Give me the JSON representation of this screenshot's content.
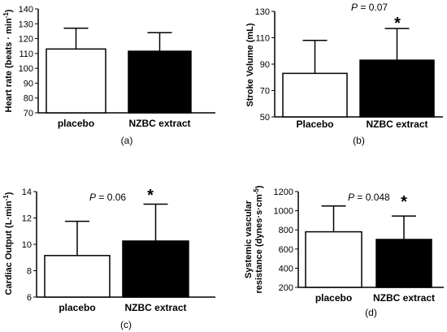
{
  "chart_data": [
    {
      "type": "bar",
      "panel_label": "(a)",
      "ylabel_main": "Heart rate (beats · min",
      "ylabel_sup": "-1",
      "ylabel_tail": ")",
      "categories": [
        "placebo",
        "NZBC extract"
      ],
      "values": [
        113,
        111.5
      ],
      "errors": [
        14,
        12.5
      ],
      "fills": [
        "#ffffff",
        "#000000"
      ],
      "ylim": [
        70,
        140
      ],
      "yticks": [
        70,
        80,
        90,
        100,
        110,
        120,
        130,
        140
      ],
      "p_text": "",
      "p_value": "",
      "significance": ""
    },
    {
      "type": "bar",
      "panel_label": "(b)",
      "ylabel_main": "Stroke Volume (mL)",
      "ylabel_sup": "",
      "ylabel_tail": "",
      "categories": [
        "Placebo",
        "NZBC extract"
      ],
      "values": [
        83,
        93
      ],
      "errors": [
        25,
        24
      ],
      "fills": [
        "#ffffff",
        "#000000"
      ],
      "ylim": [
        50,
        130
      ],
      "yticks": [
        50,
        70,
        90,
        110,
        130
      ],
      "p_text": "P",
      "p_value": " = 0.07",
      "significance": "*"
    },
    {
      "type": "bar",
      "panel_label": "(c)",
      "ylabel_main": "Cardiac Output (L·min",
      "ylabel_sup": "-1",
      "ylabel_tail": ")",
      "categories": [
        "placebo",
        "NZBC extract"
      ],
      "values": [
        9.15,
        10.25
      ],
      "errors": [
        2.6,
        2.8
      ],
      "fills": [
        "#ffffff",
        "#000000"
      ],
      "ylim": [
        6,
        14
      ],
      "yticks": [
        6,
        8,
        10,
        12,
        14
      ],
      "p_text": "P",
      "p_value": " = 0.06",
      "significance": "*"
    },
    {
      "type": "bar",
      "panel_label": "(d)",
      "ylabel_line1": "Systemic vascular",
      "ylabel_main": "resistance (dynes·s·cm",
      "ylabel_sup": "-5",
      "ylabel_tail": ")",
      "categories": [
        "placebo",
        "NZBC extract"
      ],
      "values": [
        780,
        700
      ],
      "errors": [
        270,
        245
      ],
      "fills": [
        "#ffffff",
        "#000000"
      ],
      "ylim": [
        200,
        1200
      ],
      "yticks": [
        200,
        400,
        600,
        800,
        1000,
        1200
      ],
      "p_text": "P",
      "p_value": " = 0.048",
      "significance": "*"
    }
  ]
}
